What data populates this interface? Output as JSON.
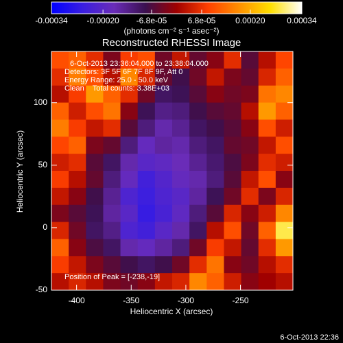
{
  "chart_data": {
    "type": "heatmap",
    "title": "Reconstructed RHESSI Image",
    "x_label": "Heliocentric X (arcsec)",
    "y_label": "Heliocentric Y (arcsec)",
    "annotations": [
      "6-Oct-2013 23:36:04.000 to 23:38:04.000",
      "Detectors: 3F 5F 6F 7F 8F 9F, Att 0",
      "Energy Range: 25.0 - 50.0 keV",
      "Clean    Total counts: 3.38E+03"
    ],
    "peak_label": "Position of Peak = [-238,-19]",
    "footer": "6-Oct-2013 22:36",
    "colorbar_label": "(photons cm⁻² s⁻¹ asec⁻²)",
    "xlim": [
      -423,
      -202
    ],
    "xticks": [
      -400,
      -350,
      -300,
      -250
    ],
    "ylim": [
      -50,
      141
    ],
    "yticks": [
      -50,
      0,
      50,
      100
    ],
    "clim": [
      -0.00034,
      0.00034
    ],
    "cticks": [
      -0.00034,
      {
        "value": -0.0002,
        "label": "-0.00020"
      },
      {
        "value": -6.8e-05,
        "label": "-6.8e-05"
      },
      {
        "value": 6.8e-05,
        "label": "6.8e-05"
      },
      {
        "value": 0.0002,
        "label": "0.00020"
      },
      0.00034
    ],
    "colormap": [
      "#0000ff",
      "#3a1ee0",
      "#6a2cb8",
      "#3a1050",
      "#a00000",
      "#ff4000",
      "#ff9000",
      "#ffe000",
      "#ffffff"
    ],
    "z": [
      [
        0.0001,
        0.00012,
        6e-05,
        -3e-05,
        8e-05,
        0.0001,
        -4e-05,
        3e-05,
        -5e-05,
        -2e-05,
        6e-05,
        -6e-05,
        2e-05,
        9e-05
      ],
      [
        6e-05,
        0.00015,
        0.0001,
        2e-05,
        0.00016,
        5e-05,
        -5e-05,
        -8e-05,
        -4e-05,
        3e-05,
        -3e-05,
        -5e-05,
        5e-05,
        0.00012
      ],
      [
        2e-05,
        8e-05,
        0.00018,
        0.00012,
        6e-05,
        -4e-05,
        -0.0001,
        -9e-05,
        -6e-05,
        -2e-05,
        -4e-05,
        -3e-05,
        0.00014,
        0.00016
      ],
      [
        0.00012,
        4e-05,
        0.0001,
        0.00014,
        -2e-05,
        -9e-05,
        -0.00013,
        -0.00012,
        -8e-05,
        -6e-05,
        -5e-05,
        2e-05,
        0.00018,
        0.00012
      ],
      [
        0.00015,
        8e-05,
        3e-05,
        6e-05,
        -6e-05,
        -0.00012,
        -0.00016,
        -0.00014,
        -0.0001,
        -8e-05,
        -6e-05,
        -2e-05,
        0.0001,
        4e-05
      ],
      [
        9e-05,
        0.00012,
        -3e-05,
        -5e-05,
        -0.00012,
        -0.00018,
        -0.00015,
        -0.00016,
        -0.00012,
        -0.0001,
        -5e-05,
        -4e-05,
        3e-05,
        0.0001
      ],
      [
        4e-05,
        6e-05,
        -6e-05,
        -0.0001,
        -0.00016,
        -0.0002,
        -0.00019,
        -0.00017,
        -0.00014,
        -0.00011,
        -7e-05,
        -3e-05,
        6e-05,
        4e-05
      ],
      [
        8e-05,
        2e-05,
        -5e-05,
        -0.00012,
        -0.00018,
        -0.00024,
        -0.00021,
        -0.00018,
        -0.00016,
        -0.00012,
        -6e-05,
        3e-05,
        0.0001,
        -2e-05
      ],
      [
        3e-05,
        -2e-05,
        -8e-05,
        -0.00014,
        -0.00022,
        -0.00025,
        -0.00022,
        -0.0002,
        -0.00015,
        -9e-05,
        -4e-05,
        6e-05,
        -3e-05,
        5e-05
      ],
      [
        -3e-05,
        -6e-05,
        -9e-05,
        -0.00015,
        -0.0002,
        -0.00026,
        -0.00023,
        -0.00019,
        -0.00012,
        -6e-05,
        5e-05,
        -2e-05,
        4e-05,
        0.00016
      ],
      [
        5e-05,
        -4e-05,
        -0.0001,
        -0.00013,
        -0.00022,
        -0.00024,
        -0.0002,
        -0.00016,
        -0.0001,
        2e-05,
        0.0001,
        -4e-05,
        0.00012,
        0.00028
      ],
      [
        0.00012,
        -2e-05,
        -7e-05,
        -0.0001,
        -0.00016,
        -0.00018,
        -0.00015,
        -0.00012,
        -4e-05,
        8e-05,
        3e-05,
        -5e-05,
        6e-05,
        0.00018
      ],
      [
        8e-05,
        3e-05,
        -3e-05,
        -6e-05,
        -8e-05,
        -0.0001,
        -8e-05,
        -4e-05,
        6e-05,
        0.00014,
        -2e-05,
        -4e-05,
        2e-05,
        6e-05
      ],
      [
        2e-05,
        5e-05,
        2e-05,
        -3e-05,
        -4e-05,
        -2e-05,
        3e-05,
        5e-05,
        0.00016,
        0.00012,
        4e-05,
        -2e-05,
        0,
        2e-05
      ]
    ]
  }
}
